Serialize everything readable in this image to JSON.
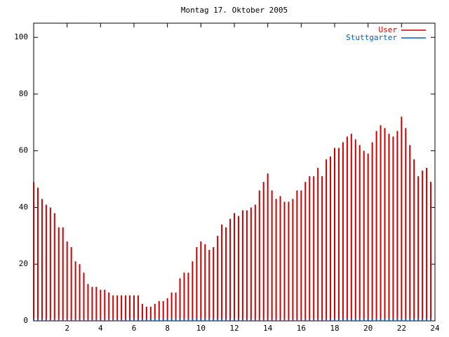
{
  "chart_data": {
    "type": "impulses",
    "title": "Montag 17. Oktober 2005",
    "xlim": [
      0,
      24
    ],
    "xticks": [
      2,
      4,
      6,
      8,
      10,
      12,
      14,
      16,
      18,
      20,
      22,
      24
    ],
    "ylim": [
      0,
      105
    ],
    "yticks": [
      0,
      20,
      40,
      60,
      80,
      100
    ],
    "legend": "top-right",
    "x": [
      0,
      0.25,
      0.5,
      0.75,
      1,
      1.25,
      1.5,
      1.75,
      2,
      2.25,
      2.5,
      2.75,
      3,
      3.25,
      3.5,
      3.75,
      4,
      4.25,
      4.5,
      4.75,
      5,
      5.25,
      5.5,
      5.75,
      6,
      6.25,
      6.5,
      6.75,
      7,
      7.25,
      7.5,
      7.75,
      8,
      8.25,
      8.5,
      8.75,
      9,
      9.25,
      9.5,
      9.75,
      10,
      10.25,
      10.5,
      10.75,
      11,
      11.25,
      11.5,
      11.75,
      12,
      12.25,
      12.5,
      12.75,
      13,
      13.25,
      13.5,
      13.75,
      14,
      14.25,
      14.5,
      14.75,
      15,
      15.25,
      15.5,
      15.75,
      16,
      16.25,
      16.5,
      16.75,
      17,
      17.25,
      17.5,
      17.75,
      18,
      18.25,
      18.5,
      18.75,
      19,
      19.25,
      19.5,
      19.75,
      20,
      20.25,
      20.5,
      20.75,
      21,
      21.25,
      21.5,
      21.75,
      22,
      22.25,
      22.5,
      22.75,
      23,
      23.25,
      23.5,
      23.75
    ],
    "series": [
      {
        "name": "User",
        "color": "#d00000",
        "values": [
          49,
          47,
          43,
          41,
          40,
          38,
          33,
          33,
          28,
          26,
          21,
          20,
          17,
          13,
          12,
          12,
          11,
          11,
          10,
          9,
          9,
          9,
          9,
          9,
          9,
          9,
          6,
          5,
          5,
          6,
          7,
          7,
          8,
          10,
          10,
          15,
          17,
          17,
          21,
          26,
          28,
          27,
          25,
          26,
          30,
          34,
          33,
          36,
          38,
          37,
          39,
          39,
          40,
          41,
          46,
          49,
          52,
          46,
          43,
          44,
          42,
          42,
          43,
          46,
          46,
          49,
          51,
          51,
          54,
          51,
          57,
          58,
          61,
          61,
          63,
          65,
          66,
          64,
          62,
          60,
          59,
          63,
          67,
          69,
          68,
          66,
          65,
          67,
          72,
          68,
          62,
          57,
          51,
          53,
          54,
          49
        ]
      },
      {
        "name": "Stuttgarter",
        "color": "#0060c0",
        "values": [
          1,
          1,
          1,
          1,
          1,
          1,
          1,
          1,
          1,
          1,
          1,
          1,
          1,
          1,
          1,
          1,
          1,
          1,
          1,
          1,
          1,
          1,
          1,
          1,
          1,
          1,
          1,
          1,
          1,
          1,
          1,
          1,
          1,
          1,
          1,
          1,
          1,
          1,
          1,
          1,
          1,
          1,
          1,
          1,
          1,
          1,
          1,
          1,
          1,
          1,
          1,
          1,
          1,
          1,
          1,
          1,
          1,
          1,
          1,
          1,
          1,
          1,
          1,
          1,
          1,
          1,
          1,
          1,
          1,
          1,
          1,
          1,
          1,
          1,
          1,
          1,
          1,
          1,
          1,
          1,
          1,
          1,
          1,
          1,
          1,
          1,
          1,
          1,
          1,
          1,
          1,
          1,
          1,
          1,
          1,
          1
        ]
      }
    ]
  }
}
